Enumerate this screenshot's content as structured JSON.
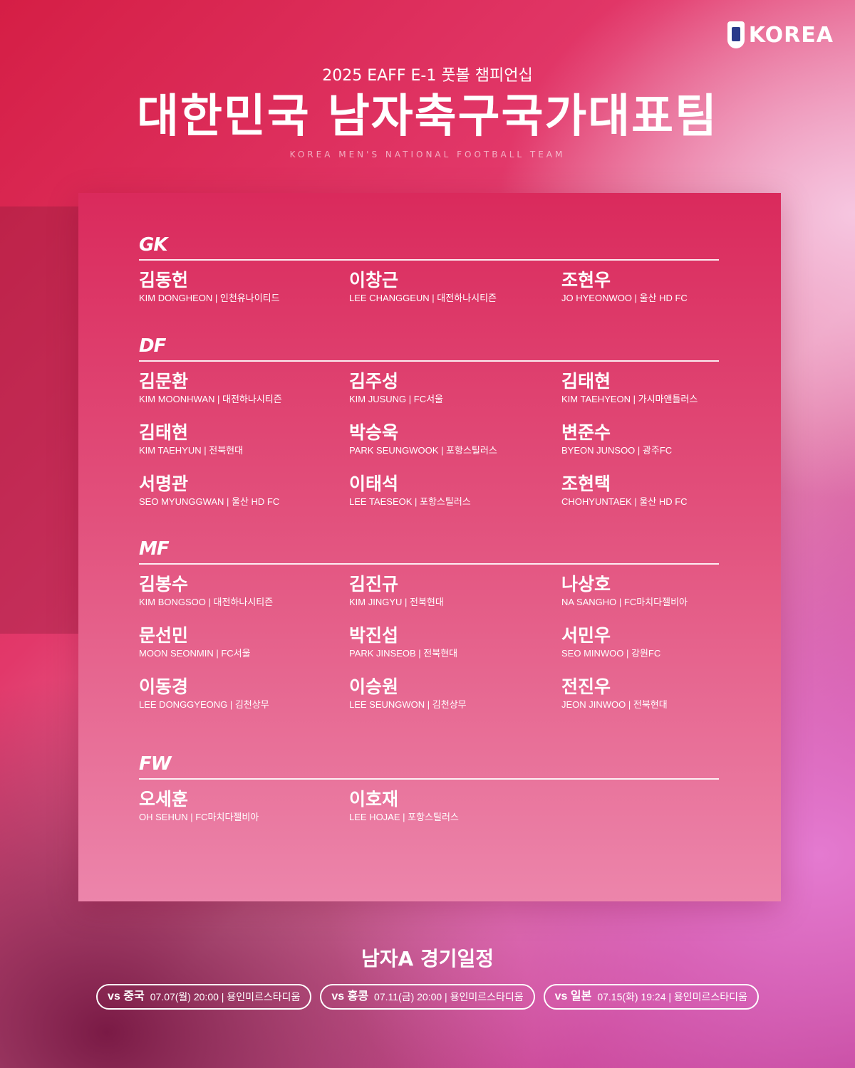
{
  "brand": "KOREA",
  "subtitle": "2025 EAFF E-1 풋볼 챔피언십",
  "title": "대한민국 남자축구국가대표팀",
  "english_title": "KOREA MEN'S NATIONAL FOOTBALL TEAM",
  "groups": [
    {
      "pos": "GK",
      "players": [
        {
          "kr": "김동헌",
          "en": "KIM DONGHEON | 인천유나이티드"
        },
        {
          "kr": "이창근",
          "en": "LEE CHANGGEUN | 대전하나시티즌"
        },
        {
          "kr": "조현우",
          "en": "JO HYEONWOO | 울산 HD FC"
        }
      ]
    },
    {
      "pos": "DF",
      "players": [
        {
          "kr": "김문환",
          "en": "KIM MOONHWAN | 대전하나시티즌"
        },
        {
          "kr": "김주성",
          "en": "KIM JUSUNG | FC서울"
        },
        {
          "kr": "김태현",
          "en": "KIM TAEHYEON | 가시마앤틀러스"
        },
        {
          "kr": "김태현",
          "en": "KIM TAEHYUN | 전북현대"
        },
        {
          "kr": "박승욱",
          "en": "PARK SEUNGWOOK | 포항스틸러스"
        },
        {
          "kr": "변준수",
          "en": "BYEON JUNSOO | 광주FC"
        },
        {
          "kr": "서명관",
          "en": "SEO MYUNGGWAN | 울산 HD FC"
        },
        {
          "kr": "이태석",
          "en": "LEE TAESEOK | 포항스틸러스"
        },
        {
          "kr": "조현택",
          "en": "CHOHYUNTAEK | 울산 HD FC"
        }
      ]
    },
    {
      "pos": "MF",
      "players": [
        {
          "kr": "김봉수",
          "en": "KIM BONGSOO | 대전하나시티즌"
        },
        {
          "kr": "김진규",
          "en": "KIM JINGYU | 전북현대"
        },
        {
          "kr": "나상호",
          "en": "NA SANGHO | FC마치다젤비아"
        },
        {
          "kr": "문선민",
          "en": "MOON SEONMIN | FC서울"
        },
        {
          "kr": "박진섭",
          "en": "PARK JINSEOB | 전북현대"
        },
        {
          "kr": "서민우",
          "en": "SEO MINWOO | 강원FC"
        },
        {
          "kr": "이동경",
          "en": "LEE DONGGYEONG | 김천상무"
        },
        {
          "kr": "이승원",
          "en": "LEE SEUNGWON | 김천상무"
        },
        {
          "kr": "전진우",
          "en": "JEON JINWOO | 전북현대"
        }
      ]
    },
    {
      "pos": "FW",
      "players": [
        {
          "kr": "오세훈",
          "en": "OH SEHUN | FC마치다젤비아"
        },
        {
          "kr": "이호재",
          "en": "LEE HOJAE | 포항스틸러스"
        }
      ]
    }
  ],
  "schedule": {
    "title": "남자A 경기일정",
    "matches": [
      {
        "opponent": "vs 중국",
        "info": "07.07(월) 20:00 | 용인미르스타디움"
      },
      {
        "opponent": "vs 홍콩",
        "info": "07.11(금) 20:00 | 용인미르스타디움"
      },
      {
        "opponent": "vs 일본",
        "info": "07.15(화) 19:24 | 용인미르스타디움"
      }
    ]
  }
}
